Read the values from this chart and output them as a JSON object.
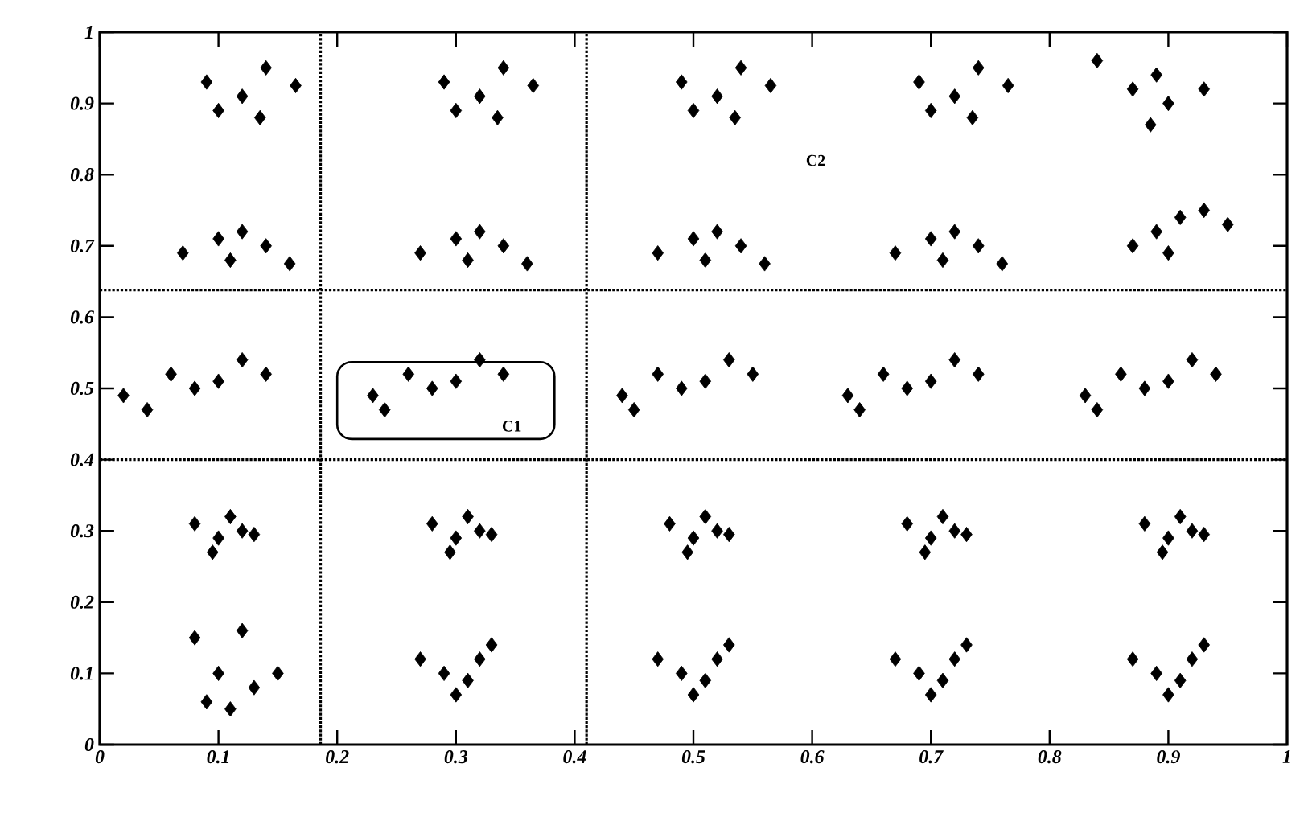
{
  "chart_data": {
    "type": "scatter",
    "x": [
      0.09,
      0.1,
      0.12,
      0.135,
      0.14,
      0.165,
      0.29,
      0.3,
      0.32,
      0.335,
      0.34,
      0.365,
      0.49,
      0.5,
      0.52,
      0.535,
      0.54,
      0.565,
      0.69,
      0.7,
      0.72,
      0.735,
      0.74,
      0.765,
      0.84,
      0.87,
      0.89,
      0.9,
      0.93,
      0.885,
      0.07,
      0.1,
      0.12,
      0.14,
      0.11,
      0.16,
      0.27,
      0.3,
      0.32,
      0.34,
      0.31,
      0.36,
      0.47,
      0.5,
      0.52,
      0.54,
      0.51,
      0.56,
      0.67,
      0.7,
      0.72,
      0.74,
      0.71,
      0.76,
      0.87,
      0.89,
      0.91,
      0.93,
      0.95,
      0.9,
      0.02,
      0.04,
      0.06,
      0.08,
      0.1,
      0.12,
      0.14,
      0.23,
      0.24,
      0.26,
      0.28,
      0.3,
      0.32,
      0.34,
      0.44,
      0.45,
      0.47,
      0.49,
      0.51,
      0.53,
      0.55,
      0.63,
      0.64,
      0.66,
      0.68,
      0.7,
      0.72,
      0.74,
      0.83,
      0.84,
      0.86,
      0.88,
      0.9,
      0.92,
      0.94,
      0.08,
      0.1,
      0.11,
      0.12,
      0.13,
      0.095,
      0.28,
      0.3,
      0.31,
      0.32,
      0.33,
      0.295,
      0.48,
      0.5,
      0.51,
      0.52,
      0.53,
      0.495,
      0.68,
      0.7,
      0.71,
      0.72,
      0.73,
      0.695,
      0.88,
      0.9,
      0.91,
      0.92,
      0.93,
      0.895,
      0.08,
      0.12,
      0.1,
      0.13,
      0.09,
      0.15,
      0.11,
      0.27,
      0.29,
      0.31,
      0.32,
      0.33,
      0.3,
      0.47,
      0.49,
      0.51,
      0.52,
      0.53,
      0.5,
      0.67,
      0.69,
      0.71,
      0.72,
      0.73,
      0.7,
      0.87,
      0.89,
      0.91,
      0.92,
      0.93,
      0.9
    ],
    "series": [
      {
        "color": "#000000",
        "values": [
          0.93,
          0.89,
          0.91,
          0.88,
          0.95,
          0.925,
          0.93,
          0.89,
          0.91,
          0.88,
          0.95,
          0.925,
          0.93,
          0.89,
          0.91,
          0.88,
          0.95,
          0.925,
          0.93,
          0.89,
          0.91,
          0.88,
          0.95,
          0.925,
          0.96,
          0.92,
          0.94,
          0.9,
          0.92,
          0.87,
          0.69,
          0.71,
          0.72,
          0.7,
          0.68,
          0.675,
          0.69,
          0.71,
          0.72,
          0.7,
          0.68,
          0.675,
          0.69,
          0.71,
          0.72,
          0.7,
          0.68,
          0.675,
          0.69,
          0.71,
          0.72,
          0.7,
          0.68,
          0.675,
          0.7,
          0.72,
          0.74,
          0.75,
          0.73,
          0.69,
          0.49,
          0.47,
          0.52,
          0.5,
          0.51,
          0.54,
          0.52,
          0.49,
          0.47,
          0.52,
          0.5,
          0.51,
          0.54,
          0.52,
          0.49,
          0.47,
          0.52,
          0.5,
          0.51,
          0.54,
          0.52,
          0.49,
          0.47,
          0.52,
          0.5,
          0.51,
          0.54,
          0.52,
          0.49,
          0.47,
          0.52,
          0.5,
          0.51,
          0.54,
          0.52,
          0.31,
          0.29,
          0.32,
          0.3,
          0.295,
          0.27,
          0.31,
          0.29,
          0.32,
          0.3,
          0.295,
          0.27,
          0.31,
          0.29,
          0.32,
          0.3,
          0.295,
          0.27,
          0.31,
          0.29,
          0.32,
          0.3,
          0.295,
          0.27,
          0.31,
          0.29,
          0.32,
          0.3,
          0.295,
          0.27,
          0.15,
          0.16,
          0.1,
          0.08,
          0.06,
          0.1,
          0.05,
          0.12,
          0.1,
          0.09,
          0.12,
          0.14,
          0.07,
          0.12,
          0.1,
          0.09,
          0.12,
          0.14,
          0.07,
          0.12,
          0.1,
          0.09,
          0.12,
          0.14,
          0.07,
          0.12,
          0.1,
          0.09,
          0.12,
          0.14,
          0.07
        ]
      }
    ],
    "xlim": [
      0,
      1
    ],
    "ylim": [
      0,
      1
    ],
    "xticks": [
      0,
      0.1,
      0.2,
      0.3,
      0.4,
      0.5,
      0.6,
      0.7,
      0.8,
      0.9,
      1
    ],
    "yticks": [
      0,
      0.1,
      0.2,
      0.3,
      0.4,
      0.5,
      0.6,
      0.7,
      0.8,
      0.9,
      1
    ],
    "marker": "diamond",
    "grid": false,
    "ref_lines": [
      {
        "axis": "x",
        "value": 0.186,
        "line_style": "dotted"
      },
      {
        "axis": "x",
        "value": 0.41,
        "line_style": "dotted"
      },
      {
        "axis": "y",
        "value": 0.638,
        "line_style": "dotted"
      },
      {
        "axis": "y",
        "value": 0.4,
        "line_style": "dotted"
      }
    ],
    "annotations": [
      "C1",
      "C2"
    ]
  }
}
